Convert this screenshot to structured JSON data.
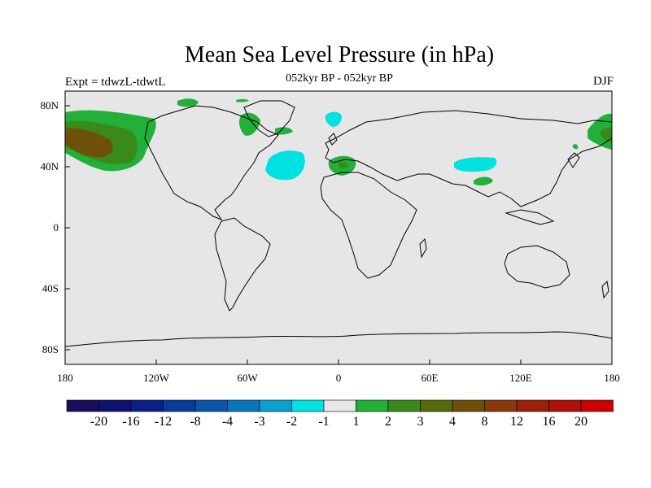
{
  "header": {
    "title": "Mean Sea Level Pressure (in hPa)",
    "subtitle": "052kyr BP - 052kyr BP",
    "left_label": "Expt = tdwzL-tdwtL",
    "right_label": "DJF"
  },
  "axes": {
    "lat_ticks": [
      "80N",
      "40N",
      "0",
      "40S",
      "80S"
    ],
    "lon_ticks": [
      "180",
      "120W",
      "60W",
      "0",
      "60E",
      "120E",
      "180"
    ]
  },
  "colorbar": {
    "colors": [
      "#1a0c5e",
      "#101070",
      "#0a2088",
      "#0a3a9a",
      "#0a55a8",
      "#0a74bc",
      "#0aa0d0",
      "#00e1e1",
      "#e6e6e6",
      "#22b03a",
      "#3a8a1a",
      "#556b0a",
      "#6f500a",
      "#8a3a0a",
      "#9a200a",
      "#b0100a",
      "#cc0000"
    ],
    "labels": [
      "-20",
      "-16",
      "-12",
      "-8",
      "-4",
      "-3",
      "-2",
      "-1",
      "1",
      "2",
      "3",
      "4",
      "8",
      "12",
      "16",
      "20"
    ]
  },
  "colors": {
    "map_background": "#e6e6e6",
    "positive_light": "#22b03a",
    "positive_mid": "#3a8a1a",
    "positive_strong": "#6f500a",
    "negative": "#00e1e1"
  }
}
